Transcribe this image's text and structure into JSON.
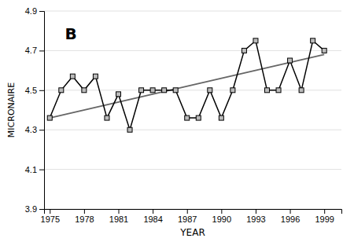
{
  "chart_data": {
    "type": "line",
    "x": [
      1975,
      1976,
      1977,
      1978,
      1979,
      1980,
      1981,
      1982,
      1983,
      1984,
      1985,
      1986,
      1987,
      1988,
      1989,
      1990,
      1991,
      1992,
      1993,
      1994,
      1995,
      1996,
      1997,
      1998,
      1999
    ],
    "series": [
      {
        "values": [
          4.36,
          4.5,
          4.57,
          4.5,
          4.57,
          4.36,
          4.48,
          4.3,
          4.5,
          4.5,
          4.5,
          4.5,
          4.36,
          4.36,
          4.5,
          4.36,
          4.5,
          4.7,
          4.75,
          4.5,
          4.5,
          4.65,
          4.5,
          4.75,
          4.7
        ],
        "color": "#000000",
        "marker": "square"
      },
      {
        "x": [
          1975,
          1999
        ],
        "values": [
          4.36,
          4.68
        ],
        "color": "#666666"
      }
    ],
    "x_label": "YEAR",
    "y_label": "MICRONAIRE",
    "annotation": "B",
    "xlim": [
      1974.5,
      2000.5
    ],
    "ylim": [
      3.9,
      4.9
    ],
    "xticks": [
      1975,
      1978,
      1981,
      1984,
      1987,
      1990,
      1993,
      1996,
      1999
    ],
    "yticks": [
      3.9,
      4.1,
      4.3,
      4.5,
      4.7,
      4.9
    ],
    "grid": true
  }
}
